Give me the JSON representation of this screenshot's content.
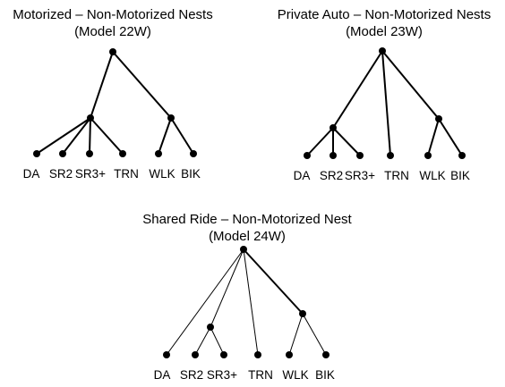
{
  "trees": [
    {
      "key": "model-22w",
      "title_line1": "Motorized – Non-Motorized Nests",
      "title_line2": "(Model 22W)",
      "leaves": [
        "DA",
        "SR2",
        "SR3+",
        "TRN",
        "WLK",
        "BIK"
      ]
    },
    {
      "key": "model-23w",
      "title_line1": "Private Auto – Non-Motorized Nests",
      "title_line2": "(Model 23W)",
      "leaves": [
        "DA",
        "SR2",
        "SR3+",
        "TRN",
        "WLK",
        "BIK"
      ]
    },
    {
      "key": "model-24w",
      "title_line1": "Shared Ride – Non-Motorized Nest",
      "title_line2": "(Model 24W)",
      "leaves": [
        "DA",
        "SR2",
        "SR3+",
        "TRN",
        "WLK",
        "BIK"
      ]
    }
  ],
  "colors": {
    "line": "#000000",
    "background": "#ffffff"
  }
}
